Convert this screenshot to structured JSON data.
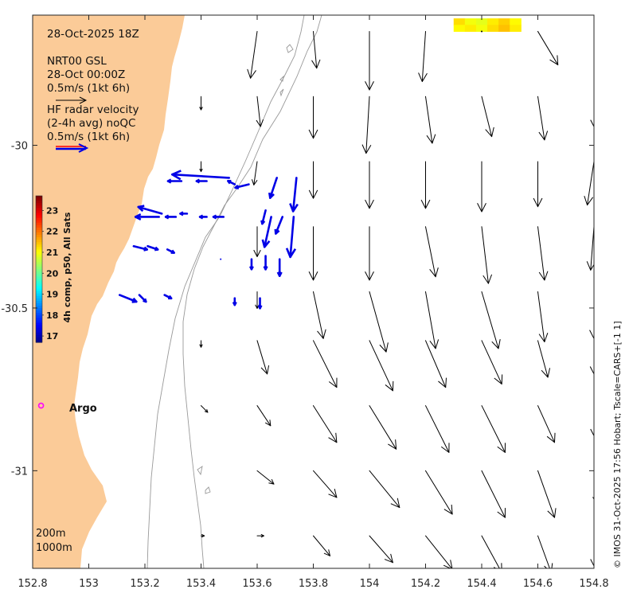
{
  "map": {
    "timestamp": "28-Oct-2025 18Z",
    "model_info": [
      "NRT00 GSL",
      "28-Oct 00:00Z",
      "0.5m/s (1kt 6h)"
    ],
    "radar_info": [
      "HF radar velocity",
      "(2-4h avg) noQC",
      "0.5m/s (1kt 6h)"
    ],
    "colorbar_title": "4h comp, p50, All Sats",
    "colorbar_ticks": [
      "23",
      "22",
      "21",
      "20",
      "19",
      "18",
      "17"
    ],
    "colorbar_range": [
      16.7,
      23.7
    ],
    "argo_label": "Argo",
    "isobath_labels": [
      "200m",
      "1000m"
    ],
    "credit": "© IMOS 31-Oct-2025 17:56 Hobart; Tscale=CARS+[-1 1]",
    "x_tick_labels": [
      "152.8",
      "153",
      "153.2",
      "153.4",
      "153.6",
      "153.8",
      "154",
      "154.2",
      "154.4",
      "154.6",
      "154.8"
    ],
    "y_tick_labels": [
      "-30",
      "-30.5",
      "-31"
    ],
    "lon_range": [
      152.8,
      154.8
    ],
    "lat_range": [
      -31.3,
      -29.6
    ],
    "colors": {
      "land": "#fbcb98",
      "radar": "#0000e6",
      "argo": "#ff00ff",
      "isobath": "#999999",
      "model_arrow": "#000000",
      "legend_arrow_red": "#ff0000"
    }
  },
  "chart_data": {
    "type": "quiver",
    "title": "28-Oct-2025 18Z",
    "xlabel": "",
    "ylabel": "",
    "xlim": [
      152.8,
      154.8
    ],
    "ylim": [
      -31.3,
      -29.6
    ],
    "model_currents": [
      {
        "lon": 153.6,
        "lat": -29.65,
        "u": -0.04,
        "v": -0.28
      },
      {
        "lon": 153.8,
        "lat": -29.65,
        "u": 0.02,
        "v": -0.22
      },
      {
        "lon": 154.0,
        "lat": -29.65,
        "u": 0.0,
        "v": -0.35
      },
      {
        "lon": 154.2,
        "lat": -29.65,
        "u": -0.02,
        "v": -0.3
      },
      {
        "lon": 154.4,
        "lat": -29.65,
        "u": 0.0,
        "v": 0.0
      },
      {
        "lon": 154.6,
        "lat": -29.65,
        "u": 0.12,
        "v": -0.2
      },
      {
        "lon": 154.8,
        "lat": -29.65,
        "u": 0.18,
        "v": -0.25
      },
      {
        "lon": 153.4,
        "lat": -29.85,
        "u": 0.0,
        "v": -0.08
      },
      {
        "lon": 153.6,
        "lat": -29.85,
        "u": 0.02,
        "v": -0.18
      },
      {
        "lon": 153.8,
        "lat": -29.85,
        "u": 0.0,
        "v": -0.25
      },
      {
        "lon": 154.0,
        "lat": -29.85,
        "u": -0.02,
        "v": -0.34
      },
      {
        "lon": 154.2,
        "lat": -29.85,
        "u": 0.04,
        "v": -0.28
      },
      {
        "lon": 154.4,
        "lat": -29.85,
        "u": 0.06,
        "v": -0.24
      },
      {
        "lon": 154.6,
        "lat": -29.85,
        "u": 0.04,
        "v": -0.26
      },
      {
        "lon": 154.8,
        "lat": -29.85,
        "u": 0.0,
        "v": -0.18
      },
      {
        "lon": 153.4,
        "lat": -30.05,
        "u": 0.0,
        "v": -0.06
      },
      {
        "lon": 153.6,
        "lat": -30.05,
        "u": -0.02,
        "v": -0.14
      },
      {
        "lon": 153.8,
        "lat": -30.05,
        "u": 0.0,
        "v": -0.22
      },
      {
        "lon": 154.0,
        "lat": -30.05,
        "u": 0.0,
        "v": -0.28
      },
      {
        "lon": 154.2,
        "lat": -30.05,
        "u": 0.0,
        "v": -0.28
      },
      {
        "lon": 154.4,
        "lat": -30.05,
        "u": 0.0,
        "v": -0.3
      },
      {
        "lon": 154.6,
        "lat": -30.05,
        "u": 0.0,
        "v": -0.27
      },
      {
        "lon": 154.8,
        "lat": -30.05,
        "u": -0.04,
        "v": -0.26
      },
      {
        "lon": 153.6,
        "lat": -30.25,
        "u": 0.0,
        "v": -0.18
      },
      {
        "lon": 153.8,
        "lat": -30.25,
        "u": 0.0,
        "v": -0.32
      },
      {
        "lon": 154.0,
        "lat": -30.25,
        "u": 0.0,
        "v": -0.32
      },
      {
        "lon": 154.2,
        "lat": -30.25,
        "u": 0.06,
        "v": -0.3
      },
      {
        "lon": 154.4,
        "lat": -30.25,
        "u": 0.04,
        "v": -0.34
      },
      {
        "lon": 154.6,
        "lat": -30.25,
        "u": 0.04,
        "v": -0.32
      },
      {
        "lon": 154.8,
        "lat": -30.25,
        "u": -0.02,
        "v": -0.26
      },
      {
        "lon": 153.6,
        "lat": -30.45,
        "u": 0.0,
        "v": -0.1
      },
      {
        "lon": 153.8,
        "lat": -30.45,
        "u": 0.06,
        "v": -0.28
      },
      {
        "lon": 154.0,
        "lat": -30.45,
        "u": 0.1,
        "v": -0.36
      },
      {
        "lon": 154.2,
        "lat": -30.45,
        "u": 0.06,
        "v": -0.34
      },
      {
        "lon": 154.4,
        "lat": -30.45,
        "u": 0.1,
        "v": -0.34
      },
      {
        "lon": 154.6,
        "lat": -30.45,
        "u": 0.04,
        "v": -0.3
      },
      {
        "lon": 154.8,
        "lat": -30.45,
        "u": 0.0,
        "v": -0.28
      },
      {
        "lon": 153.4,
        "lat": -30.6,
        "u": 0.0,
        "v": -0.04
      },
      {
        "lon": 153.6,
        "lat": -30.6,
        "u": 0.06,
        "v": -0.2
      },
      {
        "lon": 153.8,
        "lat": -30.6,
        "u": 0.14,
        "v": -0.28
      },
      {
        "lon": 154.0,
        "lat": -30.6,
        "u": 0.14,
        "v": -0.3
      },
      {
        "lon": 154.2,
        "lat": -30.6,
        "u": 0.12,
        "v": -0.28
      },
      {
        "lon": 154.4,
        "lat": -30.6,
        "u": 0.12,
        "v": -0.26
      },
      {
        "lon": 154.6,
        "lat": -30.6,
        "u": 0.06,
        "v": -0.22
      },
      {
        "lon": 154.8,
        "lat": -30.6,
        "u": 0.0,
        "v": -0.2
      },
      {
        "lon": 153.4,
        "lat": -30.8,
        "u": 0.04,
        "v": -0.04
      },
      {
        "lon": 153.6,
        "lat": -30.8,
        "u": 0.08,
        "v": -0.12
      },
      {
        "lon": 153.8,
        "lat": -30.8,
        "u": 0.14,
        "v": -0.22
      },
      {
        "lon": 154.0,
        "lat": -30.8,
        "u": 0.16,
        "v": -0.26
      },
      {
        "lon": 154.2,
        "lat": -30.8,
        "u": 0.14,
        "v": -0.28
      },
      {
        "lon": 154.4,
        "lat": -30.8,
        "u": 0.14,
        "v": -0.28
      },
      {
        "lon": 154.6,
        "lat": -30.8,
        "u": 0.1,
        "v": -0.22
      },
      {
        "lon": 154.8,
        "lat": -30.8,
        "u": 0.0,
        "v": -0.18
      },
      {
        "lon": 153.6,
        "lat": -31.0,
        "u": 0.1,
        "v": -0.08
      },
      {
        "lon": 153.8,
        "lat": -31.0,
        "u": 0.14,
        "v": -0.16
      },
      {
        "lon": 154.0,
        "lat": -31.0,
        "u": 0.18,
        "v": -0.22
      },
      {
        "lon": 154.2,
        "lat": -31.0,
        "u": 0.16,
        "v": -0.26
      },
      {
        "lon": 154.4,
        "lat": -31.0,
        "u": 0.14,
        "v": -0.28
      },
      {
        "lon": 154.6,
        "lat": -31.0,
        "u": 0.1,
        "v": -0.28
      },
      {
        "lon": 154.8,
        "lat": -31.0,
        "u": 0.02,
        "v": -0.2
      },
      {
        "lon": 153.4,
        "lat": -31.2,
        "u": 0.02,
        "v": 0.0
      },
      {
        "lon": 153.6,
        "lat": -31.2,
        "u": 0.04,
        "v": 0.0
      },
      {
        "lon": 153.8,
        "lat": -31.2,
        "u": 0.1,
        "v": -0.12
      },
      {
        "lon": 154.0,
        "lat": -31.2,
        "u": 0.14,
        "v": -0.16
      },
      {
        "lon": 154.2,
        "lat": -31.2,
        "u": 0.16,
        "v": -0.2
      },
      {
        "lon": 154.4,
        "lat": -31.2,
        "u": 0.12,
        "v": -0.22
      },
      {
        "lon": 154.6,
        "lat": -31.2,
        "u": 0.08,
        "v": -0.22
      },
      {
        "lon": 154.8,
        "lat": -31.2,
        "u": 0.0,
        "v": -0.18
      }
    ],
    "radar_currents": [
      {
        "lon": 153.5,
        "lat": -30.1,
        "u": -0.34,
        "v": 0.02
      },
      {
        "lon": 153.33,
        "lat": -30.11,
        "u": -0.08,
        "v": 0.0
      },
      {
        "lon": 153.42,
        "lat": -30.11,
        "u": -0.06,
        "v": 0.0
      },
      {
        "lon": 153.52,
        "lat": -30.12,
        "u": -0.04,
        "v": 0.02
      },
      {
        "lon": 153.57,
        "lat": -30.12,
        "u": -0.08,
        "v": -0.02
      },
      {
        "lon": 153.67,
        "lat": -30.1,
        "u": -0.04,
        "v": -0.12
      },
      {
        "lon": 153.74,
        "lat": -30.1,
        "u": -0.02,
        "v": -0.2
      },
      {
        "lon": 153.25,
        "lat": -30.22,
        "u": -0.14,
        "v": 0.0
      },
      {
        "lon": 153.31,
        "lat": -30.22,
        "u": -0.06,
        "v": 0.0
      },
      {
        "lon": 153.35,
        "lat": -30.21,
        "u": -0.04,
        "v": 0.0
      },
      {
        "lon": 153.42,
        "lat": -30.22,
        "u": -0.04,
        "v": 0.0
      },
      {
        "lon": 153.48,
        "lat": -30.22,
        "u": -0.06,
        "v": 0.0
      },
      {
        "lon": 153.26,
        "lat": -30.21,
        "u": -0.14,
        "v": 0.04
      },
      {
        "lon": 153.63,
        "lat": -30.2,
        "u": -0.02,
        "v": -0.08
      },
      {
        "lon": 153.65,
        "lat": -30.22,
        "u": -0.04,
        "v": -0.18
      },
      {
        "lon": 153.69,
        "lat": -30.22,
        "u": -0.04,
        "v": -0.1
      },
      {
        "lon": 153.73,
        "lat": -30.22,
        "u": -0.02,
        "v": -0.24
      },
      {
        "lon": 153.16,
        "lat": -30.31,
        "u": 0.08,
        "v": -0.02
      },
      {
        "lon": 153.21,
        "lat": -30.31,
        "u": 0.06,
        "v": -0.02
      },
      {
        "lon": 153.28,
        "lat": -30.32,
        "u": 0.04,
        "v": -0.02
      },
      {
        "lon": 153.47,
        "lat": -30.35,
        "u": 0.0,
        "v": 0.0
      },
      {
        "lon": 153.58,
        "lat": -30.35,
        "u": 0.0,
        "v": -0.06
      },
      {
        "lon": 153.63,
        "lat": -30.34,
        "u": 0.0,
        "v": -0.08
      },
      {
        "lon": 153.68,
        "lat": -30.35,
        "u": 0.0,
        "v": -0.1
      },
      {
        "lon": 153.11,
        "lat": -30.46,
        "u": 0.1,
        "v": -0.04
      },
      {
        "lon": 153.18,
        "lat": -30.46,
        "u": 0.04,
        "v": -0.04
      },
      {
        "lon": 153.27,
        "lat": -30.46,
        "u": 0.04,
        "v": -0.02
      },
      {
        "lon": 153.52,
        "lat": -30.47,
        "u": 0.0,
        "v": -0.04
      },
      {
        "lon": 153.61,
        "lat": -30.47,
        "u": 0.0,
        "v": -0.06
      }
    ],
    "sst_swath": [
      {
        "lon": 154.3,
        "lat": -29.62,
        "value": 21.3
      },
      {
        "lon": 154.34,
        "lat": -29.62,
        "value": 21.0
      },
      {
        "lon": 154.38,
        "lat": -29.62,
        "value": 20.9
      },
      {
        "lon": 154.42,
        "lat": -29.62,
        "value": 21.2
      },
      {
        "lon": 154.46,
        "lat": -29.62,
        "value": 21.4
      },
      {
        "lon": 154.5,
        "lat": -29.62,
        "value": 21.1
      },
      {
        "lon": 154.3,
        "lat": -29.64,
        "value": 21.1
      },
      {
        "lon": 154.34,
        "lat": -29.64,
        "value": 21.2
      },
      {
        "lon": 154.38,
        "lat": -29.64,
        "value": 21.0
      },
      {
        "lon": 154.42,
        "lat": -29.64,
        "value": 21.3
      },
      {
        "lon": 154.46,
        "lat": -29.64,
        "value": 21.5
      },
      {
        "lon": 154.5,
        "lat": -29.64,
        "value": 21.2
      }
    ],
    "argo_floats": [
      {
        "lon": 152.83,
        "lat": -30.8
      }
    ]
  }
}
